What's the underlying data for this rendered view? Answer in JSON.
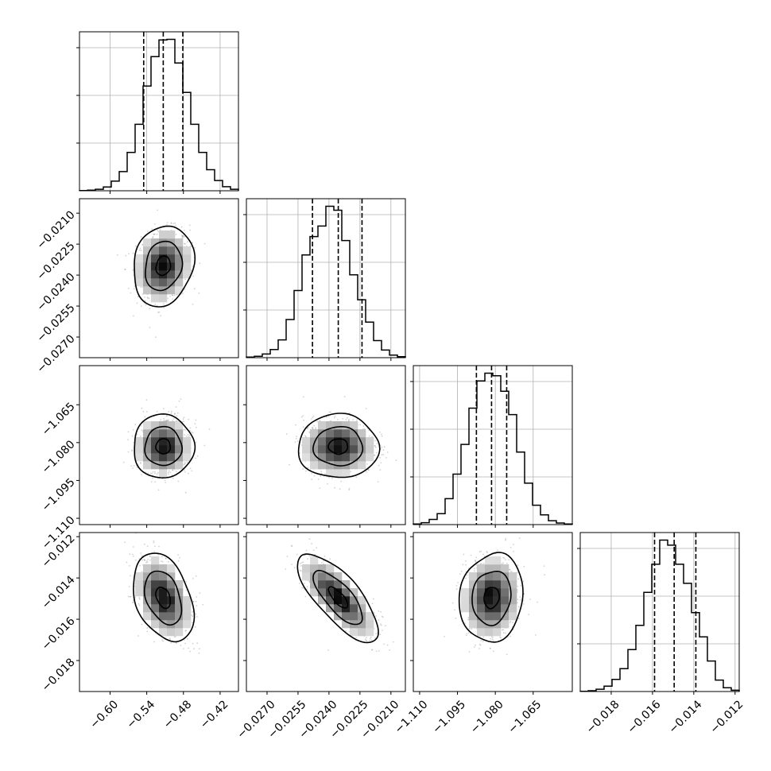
{
  "chart_data": {
    "type": "corner",
    "grid": true,
    "colors": {
      "axes": "#000000",
      "grid": "#b0b0b0",
      "hist": "#000000",
      "scatter": "#7f7f7f",
      "density": "#000000"
    },
    "parameters": [
      {
        "id": "p0",
        "range": [
          -0.65,
          -0.39
        ],
        "mean": -0.513,
        "sigma": 0.0215,
        "quantiles": [
          -0.545,
          -0.513,
          -0.481
        ],
        "ticks": [
          -0.6,
          -0.54,
          -0.48,
          -0.42
        ],
        "tick_labels": [
          "−0.60",
          "−0.54",
          "−0.48",
          "−0.42"
        ]
      },
      {
        "id": "p1",
        "range": [
          -0.028,
          -0.0203
        ],
        "mean": -0.02355,
        "sigma": 0.00085,
        "quantiles": [
          -0.0248,
          -0.02355,
          -0.0224
        ],
        "ticks": [
          -0.027,
          -0.0255,
          -0.024,
          -0.0225,
          -0.021
        ],
        "tick_labels": [
          "−0.0270",
          "−0.0255",
          "−0.0240",
          "−0.0225",
          "−0.0210"
        ]
      },
      {
        "id": "p2",
        "range": [
          -1.1125,
          -1.0495
        ],
        "mean": -1.0815,
        "sigma": 0.0055,
        "quantiles": [
          -1.0875,
          -1.0815,
          -1.0755
        ],
        "ticks": [
          -1.11,
          -1.095,
          -1.08,
          -1.065
        ],
        "tick_labels": [
          "−1.110",
          "−1.095",
          "−1.080",
          "−1.065"
        ]
      },
      {
        "id": "p3",
        "range": [
          -0.0195,
          -0.0118
        ],
        "mean": -0.01495,
        "sigma": 0.00093,
        "quantiles": [
          -0.0159,
          -0.01495,
          -0.0139
        ],
        "ticks": [
          -0.018,
          -0.016,
          -0.014,
          -0.012
        ],
        "tick_labels": [
          "−0.018",
          "−0.016",
          "−0.014",
          "−0.012"
        ]
      }
    ],
    "correlations": [
      {
        "pair": [
          "p0",
          "p1"
        ],
        "rho": 0.15
      },
      {
        "pair": [
          "p0",
          "p2"
        ],
        "rho": 0.0
      },
      {
        "pair": [
          "p1",
          "p2"
        ],
        "rho": 0.0
      },
      {
        "pair": [
          "p0",
          "p3"
        ],
        "rho": -0.35
      },
      {
        "pair": [
          "p1",
          "p3"
        ],
        "rho": -0.75
      },
      {
        "pair": [
          "p2",
          "p3"
        ],
        "rho": 0.1
      }
    ],
    "histograms": [
      {
        "param": "p0",
        "bin_edges": [
          -0.65,
          -0.637,
          -0.624,
          -0.611,
          -0.598,
          -0.585,
          -0.572,
          -0.559,
          -0.546,
          -0.533,
          -0.52,
          -0.507,
          -0.494,
          -0.481,
          -0.468,
          -0.455,
          -0.442,
          -0.429,
          -0.416,
          -0.403,
          -0.39
        ],
        "counts": [
          1,
          5,
          12,
          30,
          75,
          150,
          300,
          520,
          820,
          1050,
          1180,
          1185,
          1000,
          770,
          520,
          300,
          165,
          80,
          32,
          12
        ]
      },
      {
        "param": "p1",
        "bin_edges": [
          -0.028,
          -0.027615,
          -0.02723,
          -0.026845,
          -0.02646,
          -0.026075,
          -0.02569,
          -0.025305,
          -0.02492,
          -0.024535,
          -0.02415,
          -0.023765,
          -0.02338,
          -0.022995,
          -0.02261,
          -0.022225,
          -0.02184,
          -0.021455,
          -0.02107,
          -0.020685,
          -0.0203
        ],
        "counts": [
          4,
          10,
          28,
          62,
          135,
          290,
          510,
          780,
          920,
          1000,
          1150,
          1120,
          890,
          630,
          440,
          270,
          130,
          58,
          20,
          8
        ]
      },
      {
        "param": "p2",
        "bin_edges": [
          -1.1125,
          -1.10935,
          -1.1062,
          -1.10305,
          -1.0999,
          -1.09675,
          -1.0936,
          -1.09045,
          -1.0873,
          -1.08415,
          -1.081,
          -1.07785,
          -1.0747,
          -1.07155,
          -1.0684,
          -1.06525,
          -1.0621,
          -1.05895,
          -1.0558,
          -1.05265,
          -1.0495
        ],
        "counts": [
          5,
          15,
          40,
          85,
          200,
          390,
          620,
          900,
          1110,
          1170,
          1150,
          1030,
          850,
          560,
          320,
          150,
          75,
          30,
          12,
          5
        ]
      },
      {
        "param": "p3",
        "bin_edges": [
          -0.0195,
          -0.019115,
          -0.01873,
          -0.018345,
          -0.01796,
          -0.017575,
          -0.01719,
          -0.016805,
          -0.01642,
          -0.016035,
          -0.01565,
          -0.015265,
          -0.01488,
          -0.014495,
          -0.01411,
          -0.013725,
          -0.01334,
          -0.012955,
          -0.01257,
          -0.012185,
          -0.0118
        ],
        "counts": [
          2,
          6,
          18,
          42,
          95,
          180,
          330,
          520,
          780,
          1000,
          1190,
          1150,
          1000,
          850,
          620,
          430,
          240,
          90,
          30,
          10
        ]
      }
    ]
  }
}
